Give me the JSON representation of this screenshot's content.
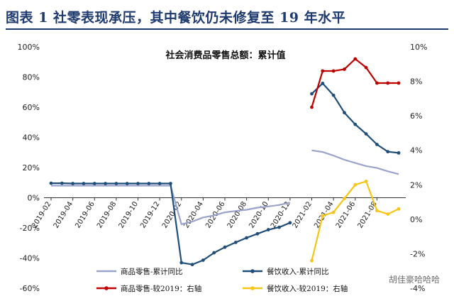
{
  "figure_title": "图表 1   社零表现承压，其中餐饮仍未修复至 19 年水平",
  "watermark": "胡佳豪哈哈哈",
  "chart_data": {
    "type": "line",
    "title": "社会消费品零售总额：累计值",
    "categories": [
      "2019-02",
      "2019-03",
      "2019-04",
      "2019-05",
      "2019-06",
      "2019-07",
      "2019-08",
      "2019-09",
      "2019-10",
      "2019-11",
      "2019-12",
      "2020-01",
      "2020-02",
      "2020-03",
      "2020-04",
      "2020-05",
      "2020-06",
      "2020-07",
      "2020-08",
      "2020-09",
      "2020-10",
      "2020-11",
      "2020-12",
      "2021-01",
      "2021-02",
      "2021-03",
      "2021-04",
      "2021-05",
      "2021-06",
      "2021-07",
      "2021-08",
      "2021-09",
      "2021-10"
    ],
    "x_tick_labels": [
      "2019-02",
      "2019-04",
      "2019-06",
      "2019-08",
      "2019-10",
      "2019-12",
      "2020-02",
      "2020-04",
      "2020-06",
      "2020-08",
      "2020-10",
      "2020-12",
      "2021-02",
      "2021-04",
      "2021-06",
      "2021-08"
    ],
    "left_axis": {
      "ylim": [
        -60,
        100
      ],
      "ticks": [
        "-60%",
        "-40%",
        "-20%",
        "0%",
        "20%",
        "40%",
        "60%",
        "80%",
        "100%"
      ]
    },
    "right_axis": {
      "ylim": [
        -4,
        10
      ],
      "ticks": [
        "-4%",
        "-2%",
        "0%",
        "2%",
        "4%",
        "6%",
        "8%",
        "10%"
      ]
    },
    "legend_position": "bottom",
    "series": [
      {
        "name": "商品零售-累计同比",
        "axis": "left",
        "color": "#9aa3c9",
        "marker": false,
        "values": [
          8.0,
          8.0,
          8.0,
          8.0,
          8.0,
          8.0,
          8.0,
          8.0,
          8.0,
          8.0,
          8.0,
          8.0,
          -17.6,
          -15.8,
          -13.1,
          -11.7,
          -9.7,
          -8.8,
          -8.0,
          -6.6,
          -5.8,
          -4.8,
          -3.2,
          null,
          31.4,
          30.3,
          27.9,
          25.2,
          23.0,
          21.0,
          19.7,
          17.5,
          15.6
        ]
      },
      {
        "name": "餐饮收入-累计同比",
        "axis": "left",
        "color": "#1f4e79",
        "marker": true,
        "values": [
          9.6,
          9.6,
          9.4,
          9.4,
          9.4,
          9.4,
          9.4,
          9.4,
          9.4,
          9.4,
          9.4,
          9.4,
          -43.1,
          -44.3,
          -41.4,
          -36.5,
          -32.8,
          -29.6,
          -26.6,
          -23.9,
          -21.2,
          -19.6,
          -16.6,
          null,
          68.9,
          75.8,
          67.9,
          56.4,
          48.6,
          42.3,
          35.3,
          30.5,
          29.7
        ]
      },
      {
        "name": "商品零售-较2019：右轴",
        "axis": "right",
        "color": "#c00000",
        "marker": true,
        "values": [
          null,
          null,
          null,
          null,
          null,
          null,
          null,
          null,
          null,
          null,
          null,
          null,
          null,
          null,
          null,
          null,
          null,
          null,
          null,
          null,
          null,
          null,
          null,
          null,
          6.5,
          8.6,
          8.6,
          8.7,
          9.3,
          8.8,
          7.9,
          7.9,
          7.9
        ]
      },
      {
        "name": "餐饮收入-较2019：右轴",
        "axis": "right",
        "color": "#f5c518",
        "marker": true,
        "values": [
          null,
          null,
          null,
          null,
          null,
          null,
          null,
          null,
          null,
          null,
          null,
          null,
          null,
          null,
          null,
          null,
          null,
          null,
          null,
          null,
          null,
          null,
          null,
          null,
          -2.4,
          0.2,
          0.4,
          1.2,
          2.0,
          2.2,
          0.5,
          0.3,
          0.6
        ]
      }
    ]
  }
}
